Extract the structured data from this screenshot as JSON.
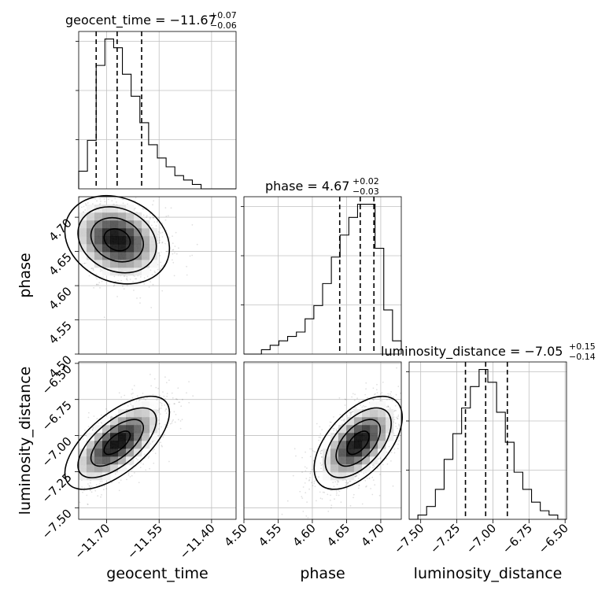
{
  "chart_data": {
    "type": "corner",
    "parameters": [
      "geocent_time",
      "phase",
      "luminosity_distance"
    ],
    "titles": [
      {
        "label": "geocent_time = −11.67",
        "plus": "+0.07",
        "minus": "−0.06"
      },
      {
        "label": "phase = 4.67",
        "plus": "+0.02",
        "minus": "−0.03"
      },
      {
        "label": "luminosity_distance = −7.05",
        "plus": "+0.15",
        "minus": "−0.14"
      }
    ],
    "axis_labels": {
      "x": [
        "geocent_time",
        "phase",
        "luminosity_distance"
      ],
      "y": [
        "phase",
        "luminosity_distance"
      ]
    },
    "ranges": [
      [
        -11.78,
        -11.33
      ],
      [
        4.5,
        4.73
      ],
      [
        -7.58,
        -6.49
      ]
    ],
    "ticks": [
      {
        "values": [
          -11.7,
          -11.55,
          -11.4
        ],
        "labels": [
          "−11.70",
          "−11.55",
          "−11.40"
        ]
      },
      {
        "values": [
          4.5,
          4.55,
          4.6,
          4.65,
          4.7
        ],
        "labels": [
          "4.50",
          "4.55",
          "4.60",
          "4.65",
          "4.70"
        ]
      },
      {
        "values": [
          -7.5,
          -7.25,
          -7.0,
          -6.75,
          -6.5
        ],
        "labels": [
          "−7.50",
          "−7.25",
          "−7.00",
          "−6.75",
          "−6.50"
        ]
      }
    ],
    "quantiles": [
      [
        -11.73,
        -11.67,
        -11.6
      ],
      [
        4.64,
        4.67,
        4.69
      ],
      [
        -7.19,
        -7.05,
        -6.9
      ]
    ],
    "histograms": [
      {
        "bin_edges": [
          -11.78,
          -11.755,
          -11.73,
          -11.705,
          -11.68,
          -11.655,
          -11.63,
          -11.605,
          -11.58,
          -11.555,
          -11.53,
          -11.505,
          -11.48,
          -11.455,
          -11.43,
          -11.405,
          -11.38,
          -11.355,
          -11.33
        ],
        "counts": [
          4,
          11,
          28,
          34,
          32,
          26,
          21,
          15,
          10,
          7,
          5,
          3,
          2,
          1,
          0,
          0,
          0,
          0
        ]
      },
      {
        "bin_edges": [
          4.5,
          4.5128,
          4.5256,
          4.5383,
          4.5511,
          4.5639,
          4.5767,
          4.5894,
          4.6022,
          4.615,
          4.6278,
          4.6406,
          4.6533,
          4.6661,
          4.6789,
          4.6917,
          4.7044,
          4.7172,
          4.73
        ],
        "counts": [
          0,
          0,
          1,
          2,
          3,
          4,
          5,
          8,
          11,
          16,
          22,
          27,
          31,
          34,
          34,
          24,
          10,
          3
        ]
      },
      {
        "bin_edges": [
          -7.58,
          -7.5194,
          -7.4589,
          -7.3983,
          -7.3378,
          -7.2772,
          -7.2167,
          -7.1561,
          -7.0956,
          -7.035,
          -6.9744,
          -6.9139,
          -6.8533,
          -6.7928,
          -6.7322,
          -6.6717,
          -6.6111,
          -6.5506,
          -6.49
        ],
        "counts": [
          0,
          1,
          3,
          7,
          14,
          20,
          26,
          31,
          35,
          32,
          25,
          18,
          11,
          7,
          4,
          2,
          1,
          0
        ]
      }
    ],
    "distributions": [
      {
        "mean": -11.67,
        "sd": 0.065
      },
      {
        "mean": 4.667,
        "sd": 0.028
      },
      {
        "mean": -7.05,
        "sd": 0.14
      }
    ],
    "correlations": {
      "0-1": -0.2,
      "0-2": 0.65,
      "1-2": 0.55
    },
    "grid": true
  }
}
